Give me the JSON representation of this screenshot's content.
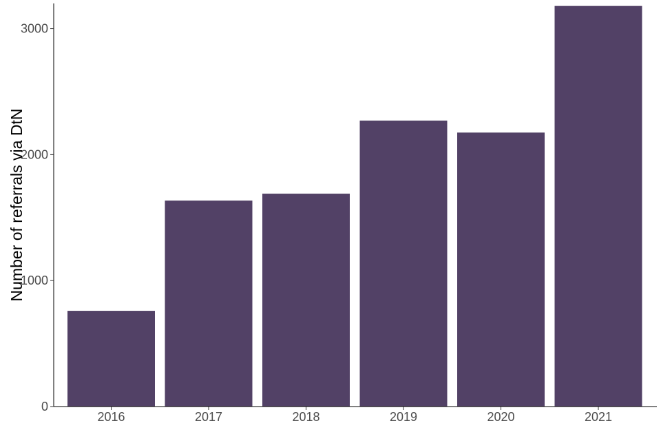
{
  "chart_data": {
    "type": "bar",
    "title": "",
    "xlabel": "",
    "ylabel": "Number of referrals via DtN",
    "categories": [
      "2016",
      "2017",
      "2018",
      "2019",
      "2020",
      "2021"
    ],
    "values": [
      760,
      1635,
      1690,
      2270,
      2175,
      3180
    ],
    "ylim": [
      0,
      3200
    ],
    "yticks": [
      0,
      1000,
      2000,
      3000
    ],
    "ytick_labels": [
      "0",
      "1000",
      "2000",
      "3000"
    ],
    "grid": false,
    "legend": "none",
    "bar_color": "#524166"
  }
}
